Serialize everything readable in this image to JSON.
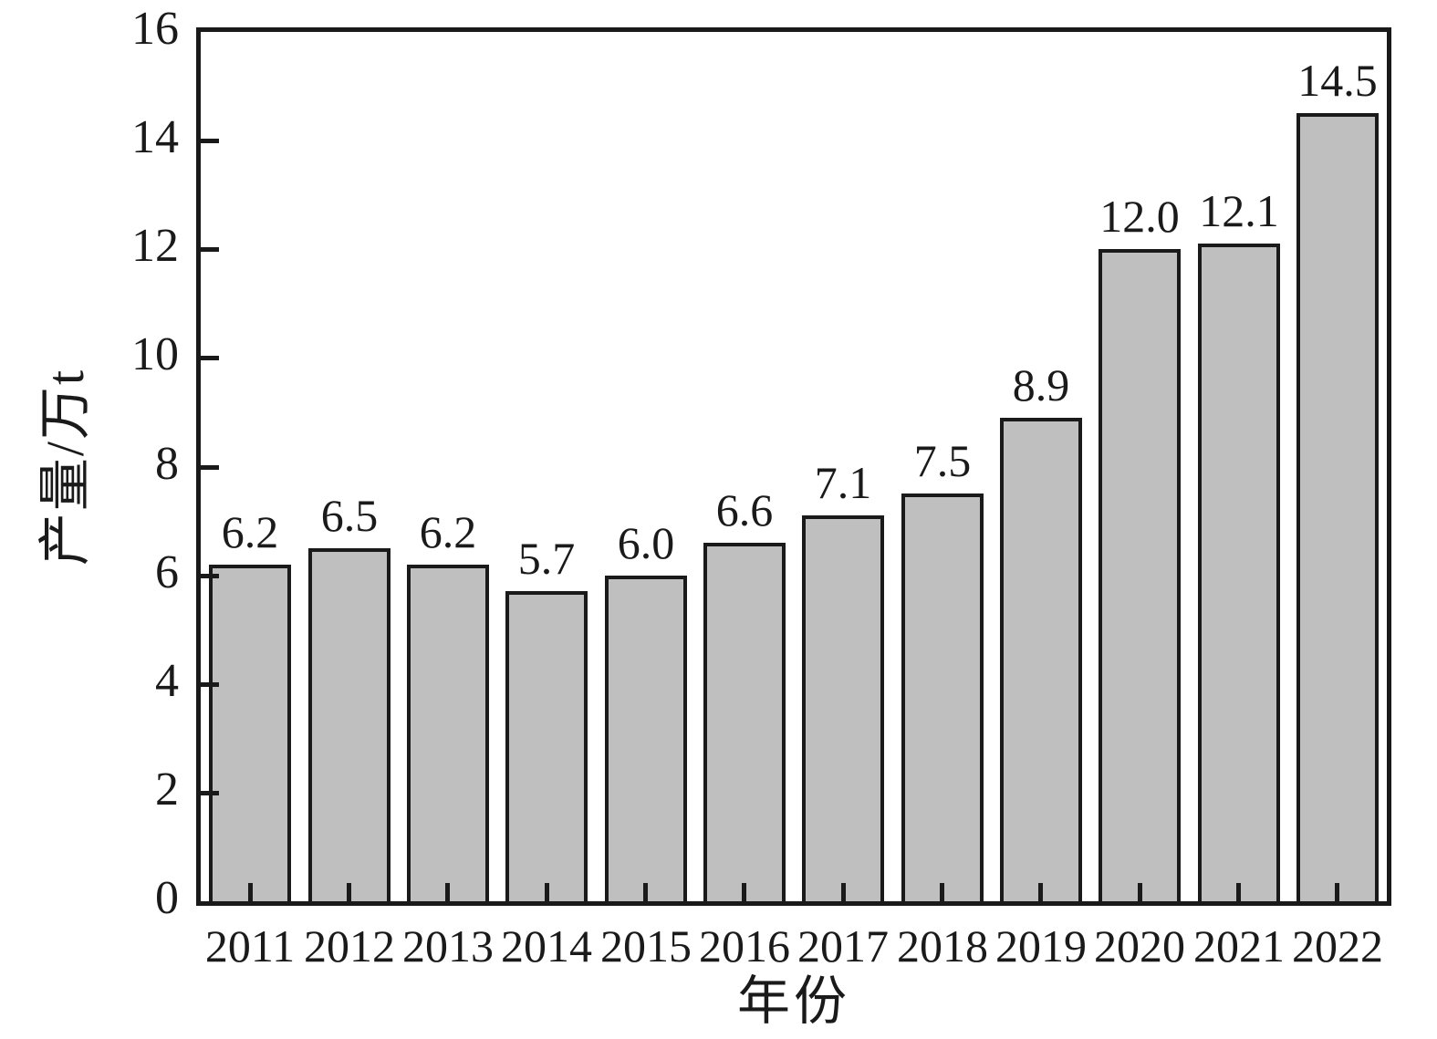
{
  "chart_data": {
    "type": "bar",
    "title": "",
    "xlabel": "年份",
    "ylabel": "产量/万t",
    "categories": [
      "2011",
      "2012",
      "2013",
      "2014",
      "2015",
      "2016",
      "2017",
      "2018",
      "2019",
      "2020",
      "2021",
      "2022"
    ],
    "values": [
      6.2,
      6.5,
      6.2,
      5.7,
      6.0,
      6.6,
      7.1,
      7.5,
      8.9,
      12.0,
      12.1,
      14.5
    ],
    "value_labels": [
      "6.2",
      "6.5",
      "6.2",
      "5.7",
      "6.0",
      "6.6",
      "7.1",
      "7.5",
      "8.9",
      "12.0",
      "12.1",
      "14.5"
    ],
    "ylim": [
      0,
      16
    ],
    "yticks": [
      0,
      2,
      4,
      6,
      8,
      10,
      12,
      14,
      16
    ],
    "ytick_labels": [
      "0",
      "2",
      "4",
      "6",
      "8",
      "10",
      "12",
      "14",
      "16"
    ],
    "grid": false,
    "legend": "none",
    "frame": "full-box",
    "tick_direction": "in",
    "bar_color": "#bfbfbf",
    "edge_color": "#1a1a1a",
    "text_color": "#1a1a1a",
    "background_color": "#ffffff"
  }
}
